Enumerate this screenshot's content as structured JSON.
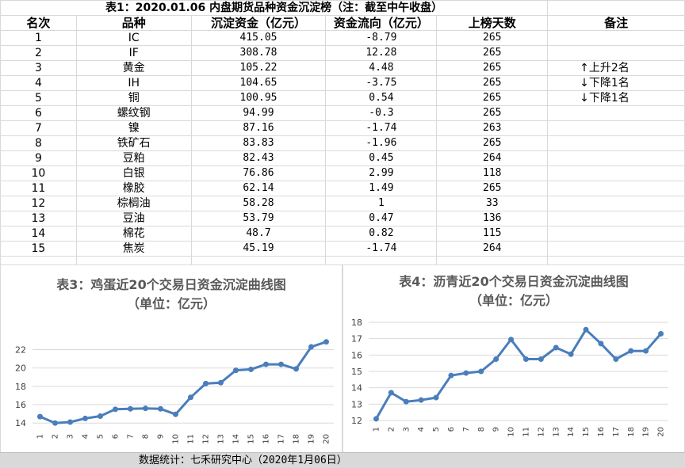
{
  "table": {
    "title": "表1：2020.01.06 内盘期货品种资金沉淀榜（注：截至中午收盘）",
    "headers": [
      "名次",
      "品种",
      "沉淀资金（亿元）",
      "资金流向（亿元）",
      "上榜天数",
      "备注"
    ],
    "rows": [
      {
        "rank": "1",
        "name": "IC",
        "amount": "415.05",
        "flow": "-8.79",
        "days": "265",
        "note": ""
      },
      {
        "rank": "2",
        "name": "IF",
        "amount": "308.78",
        "flow": "12.28",
        "days": "265",
        "note": ""
      },
      {
        "rank": "3",
        "name": "黄金",
        "amount": "105.22",
        "flow": "4.48",
        "days": "265",
        "note": "↑上升2名"
      },
      {
        "rank": "4",
        "name": "IH",
        "amount": "104.65",
        "flow": "-3.75",
        "days": "265",
        "note": "↓下降1名"
      },
      {
        "rank": "5",
        "name": "铜",
        "amount": "100.95",
        "flow": "0.54",
        "days": "265",
        "note": "↓下降1名"
      },
      {
        "rank": "6",
        "name": "螺纹钢",
        "amount": "94.99",
        "flow": "-0.3",
        "days": "265",
        "note": ""
      },
      {
        "rank": "7",
        "name": "镍",
        "amount": "87.16",
        "flow": "-1.74",
        "days": "263",
        "note": ""
      },
      {
        "rank": "8",
        "name": "铁矿石",
        "amount": "83.83",
        "flow": "-1.96",
        "days": "265",
        "note": ""
      },
      {
        "rank": "9",
        "name": "豆粕",
        "amount": "82.43",
        "flow": "0.45",
        "days": "264",
        "note": ""
      },
      {
        "rank": "10",
        "name": "白银",
        "amount": "76.86",
        "flow": "2.99",
        "days": "118",
        "note": ""
      },
      {
        "rank": "11",
        "name": "橡胶",
        "amount": "62.14",
        "flow": "1.49",
        "days": "265",
        "note": ""
      },
      {
        "rank": "12",
        "name": "棕榈油",
        "amount": "58.28",
        "flow": "1",
        "days": "33",
        "note": ""
      },
      {
        "rank": "13",
        "name": "豆油",
        "amount": "53.79",
        "flow": "0.47",
        "days": "136",
        "note": ""
      },
      {
        "rank": "14",
        "name": "棉花",
        "amount": "48.7",
        "flow": "0.82",
        "days": "115",
        "note": ""
      },
      {
        "rank": "15",
        "name": "焦炭",
        "amount": "45.19",
        "flow": "-1.74",
        "days": "264",
        "note": ""
      }
    ]
  },
  "chart_data": [
    {
      "type": "line",
      "title": "表3：鸡蛋近20个交易日资金沉淀曲线图",
      "subtitle": "（单位：亿元）",
      "x": [
        "1",
        "2",
        "3",
        "4",
        "5",
        "6",
        "7",
        "8",
        "9",
        "10",
        "11",
        "12",
        "13",
        "14",
        "15",
        "16",
        "17",
        "18",
        "19",
        "20"
      ],
      "values": [
        14.7,
        14.0,
        14.1,
        14.5,
        14.75,
        15.5,
        15.55,
        15.6,
        15.55,
        14.95,
        16.8,
        18.3,
        18.4,
        19.75,
        19.85,
        20.4,
        20.4,
        19.9,
        22.3,
        22.85
      ],
      "yticks": [
        14,
        16,
        18,
        20,
        22
      ],
      "ylim": [
        13.5,
        23.6
      ],
      "grid": true,
      "color": "#4a7ebb"
    },
    {
      "type": "line",
      "title": "表4：沥青近20个交易日资金沉淀曲线图",
      "subtitle": "（单位：亿元）",
      "x": [
        "1",
        "2",
        "3",
        "4",
        "5",
        "6",
        "7",
        "8",
        "9",
        "10",
        "11",
        "12",
        "13",
        "14",
        "15",
        "16",
        "17",
        "18",
        "19",
        "20"
      ],
      "values": [
        12.1,
        13.7,
        13.15,
        13.25,
        13.4,
        14.75,
        14.9,
        15.0,
        15.75,
        16.95,
        15.75,
        15.75,
        16.45,
        16.05,
        17.55,
        16.7,
        15.75,
        16.25,
        16.25,
        17.3
      ],
      "yticks": [
        12,
        13,
        14,
        15,
        16,
        17,
        18
      ],
      "ylim": [
        12,
        18
      ],
      "grid": true,
      "color": "#4a7ebb"
    }
  ],
  "footer": {
    "text": "数据统计：七禾研究中心（2020年1月06日）"
  }
}
